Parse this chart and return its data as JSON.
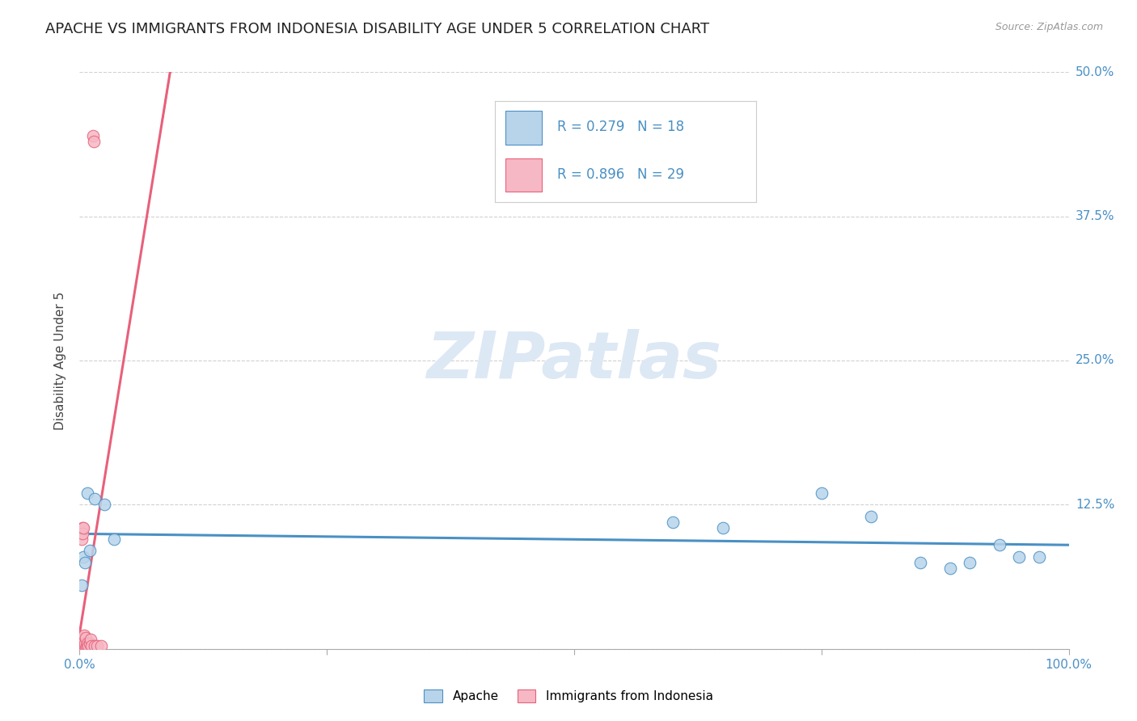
{
  "title": "APACHE VS IMMIGRANTS FROM INDONESIA DISABILITY AGE UNDER 5 CORRELATION CHART",
  "source": "Source: ZipAtlas.com",
  "ylabel": "Disability Age Under 5",
  "xlabel": "",
  "apache_x": [
    0.2,
    0.4,
    0.5,
    0.8,
    1.0,
    1.5,
    2.5,
    3.5,
    60.0,
    65.0,
    75.0,
    80.0,
    85.0,
    88.0,
    90.0,
    93.0,
    95.0,
    97.0
  ],
  "apache_y": [
    5.5,
    8.0,
    7.5,
    13.5,
    8.5,
    13.0,
    12.5,
    9.5,
    11.0,
    10.5,
    13.5,
    11.5,
    7.5,
    7.0,
    7.5,
    9.0,
    8.0,
    8.0
  ],
  "indonesia_x": [
    0.05,
    0.08,
    0.1,
    0.12,
    0.15,
    0.18,
    0.2,
    0.22,
    0.25,
    0.28,
    0.3,
    0.32,
    0.35,
    0.4,
    0.45,
    0.5,
    0.55,
    0.6,
    0.7,
    0.8,
    0.9,
    1.0,
    1.1,
    1.2,
    1.35,
    1.4,
    1.5,
    1.8,
    2.2
  ],
  "indonesia_y": [
    0.3,
    0.5,
    0.3,
    0.5,
    1.0,
    0.3,
    0.5,
    0.2,
    9.5,
    10.5,
    0.5,
    10.0,
    10.5,
    0.8,
    1.2,
    0.3,
    0.5,
    1.0,
    0.3,
    0.5,
    0.3,
    0.5,
    0.8,
    0.3,
    44.5,
    44.0,
    0.3,
    0.3,
    0.3
  ],
  "apache_color": "#b8d4ea",
  "indonesia_color": "#f5b8c4",
  "apache_line_color": "#4a90c4",
  "indonesia_line_color": "#e8607a",
  "apache_R": 0.279,
  "apache_N": 18,
  "indonesia_R": 0.896,
  "indonesia_N": 29,
  "xlim": [
    0,
    100
  ],
  "ylim": [
    0,
    50
  ],
  "background_color": "#ffffff",
  "watermark_color": "#dde8f5",
  "title_fontsize": 13,
  "axis_label_fontsize": 11,
  "tick_fontsize": 11,
  "dot_size": 110
}
